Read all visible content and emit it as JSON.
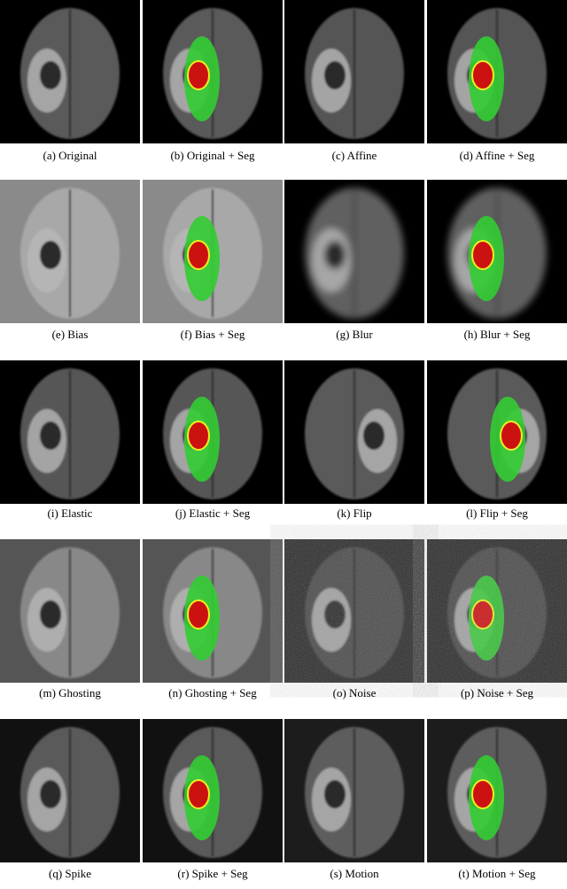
{
  "captions": [
    "(a) Original",
    "(b) Original + Seg",
    "(c) Affine",
    "(d) Affine + Seg",
    "(e) Bias",
    "(f) Bias + Seg",
    "(g) Blur",
    "(h) Blur + Seg",
    "(i) Elastic",
    "(j) Elastic + Seg",
    "(k) Flip",
    "(l) Flip + Seg",
    "(m) Ghosting",
    "(n) Ghosting + Seg",
    "(o) Noise",
    "(p) Noise + Seg",
    "(q) Spike",
    "(r) Spike + Seg",
    "(s) Motion",
    "(t) Motion + Seg"
  ]
}
